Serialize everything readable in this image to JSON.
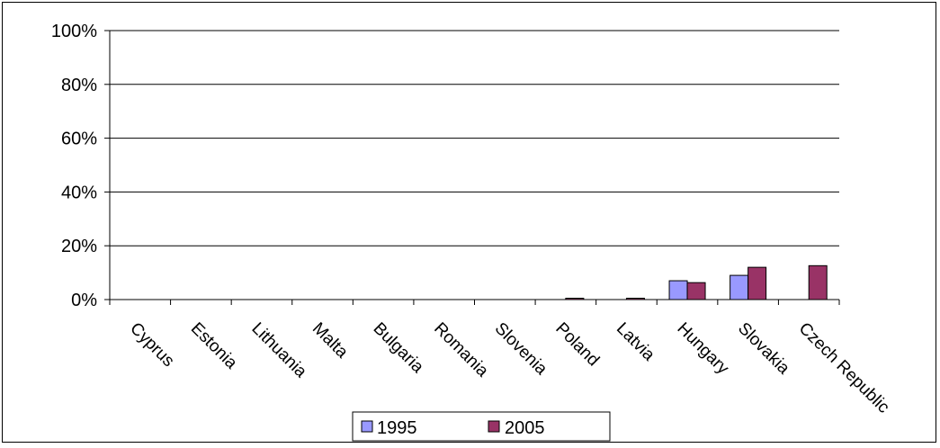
{
  "chart_data": {
    "type": "bar",
    "title": "",
    "xlabel": "",
    "ylabel": "",
    "categories": [
      "Cyprus",
      "Estonia",
      "Lithuania",
      "Malta",
      "Bulgaria",
      "Romania",
      "Slovenia",
      "Poland",
      "Latvia",
      "Hungary",
      "Slovakia",
      "Czech Republic"
    ],
    "series": [
      {
        "name": "1995",
        "color": "#9999ff",
        "values": [
          0,
          0,
          0,
          0,
          0,
          0,
          0,
          0,
          0,
          7,
          9,
          0
        ]
      },
      {
        "name": "2005",
        "color": "#993366",
        "values": [
          0,
          0,
          0,
          0,
          0,
          0,
          0,
          0.5,
          0.5,
          6.3,
          12,
          12.6
        ]
      }
    ],
    "ylim": [
      0,
      100
    ],
    "yticks": [
      0,
      20,
      40,
      60,
      80,
      100
    ],
    "ytick_labels": [
      "0%",
      "20%",
      "40%",
      "60%",
      "80%",
      "100%"
    ],
    "grid": true,
    "legend_position": "bottom"
  }
}
